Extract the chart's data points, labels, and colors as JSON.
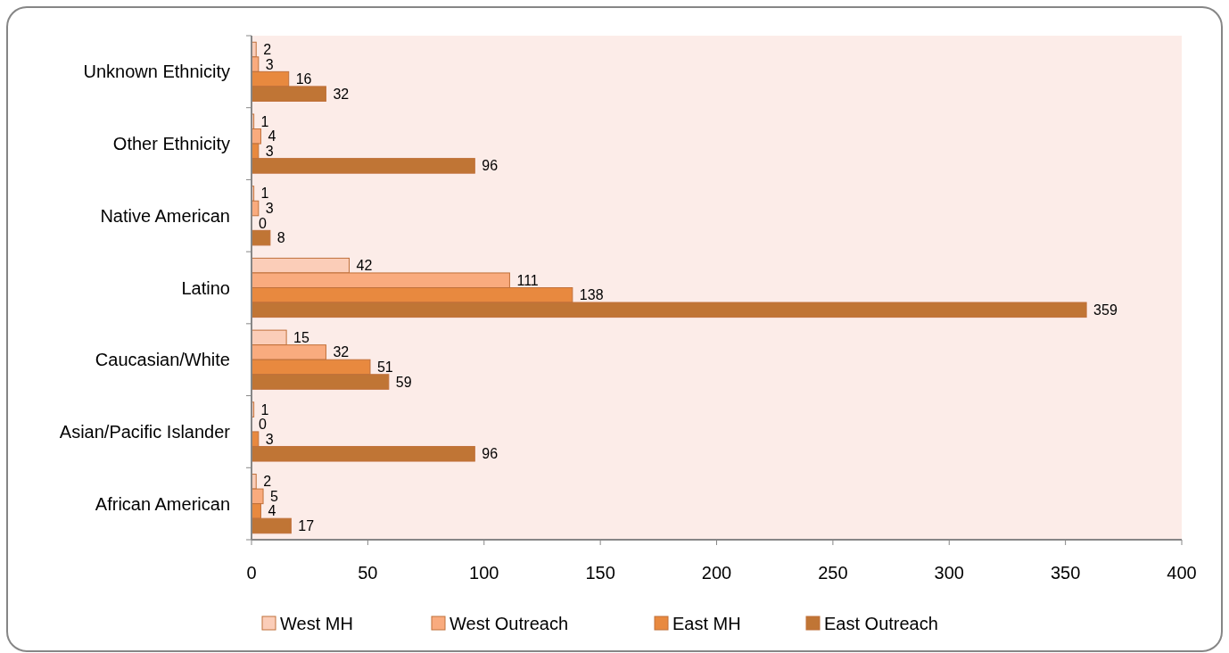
{
  "chart_data": {
    "type": "bar",
    "orientation": "horizontal",
    "categories": [
      "Unknown Ethnicity",
      "Other Ethnicity",
      "Native American",
      "Latino",
      "Caucasian/White",
      "Asian/Pacific Islander",
      "African American"
    ],
    "series": [
      {
        "name": "West MH",
        "color": "#fbcdb8",
        "values": [
          2,
          1,
          1,
          42,
          15,
          1,
          2
        ]
      },
      {
        "name": "West Outreach",
        "color": "#f9ab7e",
        "values": [
          3,
          4,
          3,
          111,
          32,
          0,
          5
        ]
      },
      {
        "name": "East MH",
        "color": "#e8893f",
        "values": [
          16,
          3,
          0,
          138,
          51,
          3,
          4
        ]
      },
      {
        "name": "East Outreach",
        "color": "#c07535",
        "values": [
          32,
          96,
          8,
          359,
          59,
          96,
          17
        ]
      }
    ],
    "xlim": [
      0,
      400
    ],
    "xticks": [
      0,
      50,
      100,
      150,
      200,
      250,
      300,
      350,
      400
    ],
    "data_labels": true,
    "legend": "bottom",
    "grid": false
  }
}
